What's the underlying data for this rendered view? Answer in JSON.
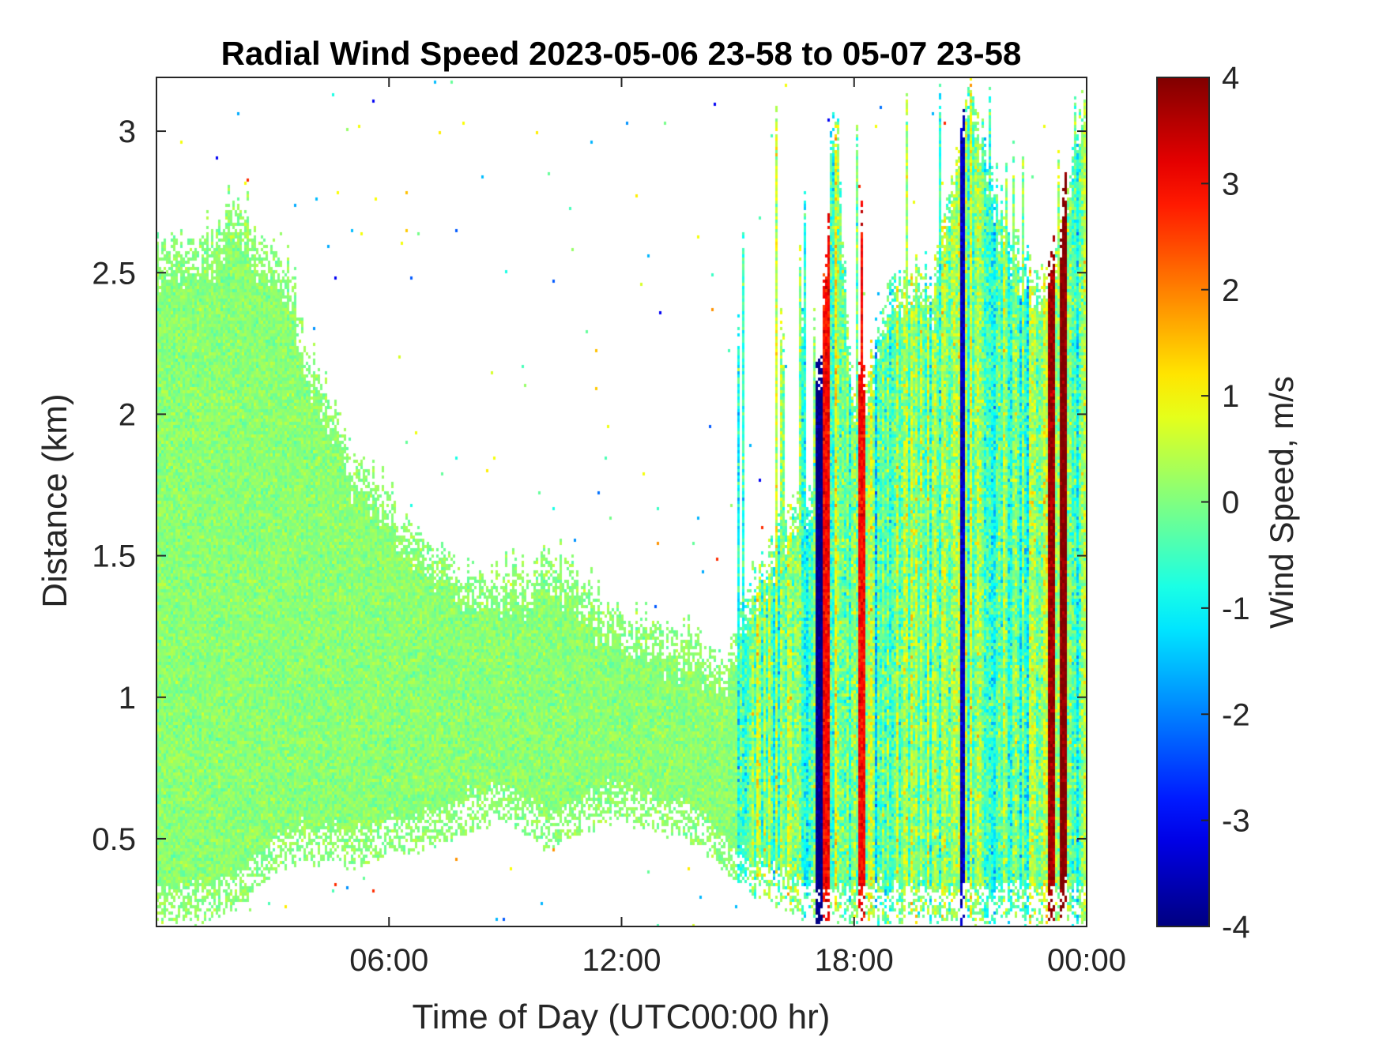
{
  "chart_data": {
    "type": "heatmap",
    "title": "Radial Wind Speed 2023-05-06 23-58 to 05-07 23-58",
    "xlabel": "Time of Day (UTC00:00 hr)",
    "ylabel": "Distance (km)",
    "x_unit": "hours since 2023-05-06 23:58 UTC",
    "xlim": [
      0,
      24
    ],
    "ylim": [
      0.19,
      3.19
    ],
    "x_ticks": [
      {
        "value": 6,
        "label": "06:00"
      },
      {
        "value": 12,
        "label": "12:00"
      },
      {
        "value": 18,
        "label": "18:00"
      },
      {
        "value": 24,
        "label": "00:00"
      }
    ],
    "y_ticks": [
      {
        "value": 0.5,
        "label": "0.5"
      },
      {
        "value": 1,
        "label": "1"
      },
      {
        "value": 1.5,
        "label": "1.5"
      },
      {
        "value": 2,
        "label": "2"
      },
      {
        "value": 2.5,
        "label": "2.5"
      },
      {
        "value": 3,
        "label": "3"
      }
    ],
    "colorbar": {
      "label": "Wind Speed, m/s",
      "colormap": "jet",
      "clim": [
        -4,
        4
      ],
      "ticks": [
        {
          "value": 4,
          "label": "4"
        },
        {
          "value": 3,
          "label": "3"
        },
        {
          "value": 2,
          "label": "2"
        },
        {
          "value": 1,
          "label": "1"
        },
        {
          "value": 0,
          "label": "0"
        },
        {
          "value": -1,
          "label": "-1"
        },
        {
          "value": -2,
          "label": "-2"
        },
        {
          "value": -3,
          "label": "-3"
        },
        {
          "value": -4,
          "label": "-4"
        }
      ]
    },
    "data_coverage": {
      "description": "Top of valid-data region (km) versus time of day (hours); blank above",
      "time_hours": [
        0,
        1,
        1.5,
        2,
        2.5,
        3,
        3.5,
        4,
        5,
        6,
        7,
        8,
        9,
        10,
        11,
        12,
        13,
        14,
        14.5,
        15,
        16,
        17,
        17.5,
        18,
        19,
        20,
        21,
        22,
        23,
        24
      ],
      "top_km": [
        2.6,
        2.6,
        2.65,
        2.75,
        2.65,
        2.6,
        2.5,
        2.2,
        1.9,
        1.7,
        1.55,
        1.45,
        1.45,
        1.5,
        1.45,
        1.3,
        1.25,
        1.2,
        1.1,
        1.3,
        1.6,
        1.8,
        3.19,
        2.0,
        2.5,
        2.5,
        3.19,
        2.6,
        2.5,
        3.19
      ],
      "bottom_km": [
        0.19,
        0.19,
        0.2,
        0.22,
        0.3,
        0.35,
        0.4,
        0.4,
        0.38,
        0.42,
        0.45,
        0.5,
        0.55,
        0.45,
        0.5,
        0.55,
        0.5,
        0.45,
        0.4,
        0.3,
        0.25,
        0.19,
        0.19,
        0.19,
        0.19,
        0.19,
        0.19,
        0.19,
        0.19,
        0.19
      ]
    },
    "typical_values": {
      "quiet_period_hours": [
        0,
        15
      ],
      "quiet_range_mps": [
        -1,
        1
      ],
      "turbulent_period_hours": [
        15,
        24
      ],
      "turbulent_range_mps": [
        -4,
        4
      ],
      "strong_streaks": [
        {
          "time_hours": 17.1,
          "value_mps": -4
        },
        {
          "time_hours": 17.3,
          "value_mps": 3
        },
        {
          "time_hours": 18.2,
          "value_mps": 3
        },
        {
          "time_hours": 20.8,
          "value_mps": -3.5
        },
        {
          "time_hours": 23.1,
          "value_mps": 3.8
        },
        {
          "time_hours": 23.4,
          "value_mps": 4
        }
      ]
    }
  }
}
